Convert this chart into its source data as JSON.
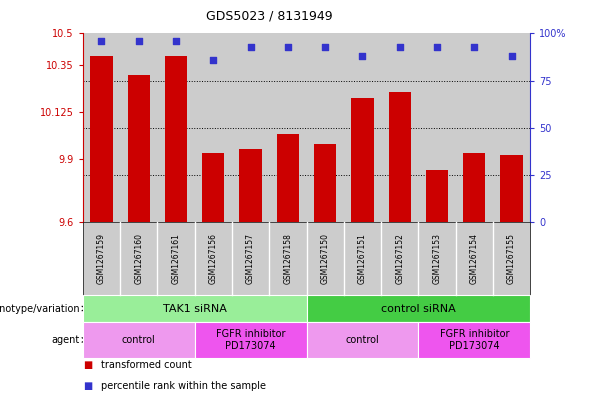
{
  "title": "GDS5023 / 8131949",
  "samples": [
    "GSM1267159",
    "GSM1267160",
    "GSM1267161",
    "GSM1267156",
    "GSM1267157",
    "GSM1267158",
    "GSM1267150",
    "GSM1267151",
    "GSM1267152",
    "GSM1267153",
    "GSM1267154",
    "GSM1267155"
  ],
  "red_values": [
    10.39,
    10.3,
    10.39,
    9.93,
    9.95,
    10.02,
    9.97,
    10.19,
    10.22,
    9.85,
    9.93,
    9.92
  ],
  "blue_values": [
    96,
    96,
    96,
    86,
    93,
    93,
    93,
    88,
    93,
    93,
    93,
    88
  ],
  "ymin": 9.6,
  "ymax": 10.5,
  "yticks": [
    9.6,
    9.9,
    10.125,
    10.35,
    10.5
  ],
  "ytick_labels": [
    "9.6",
    "9.9",
    "10.125",
    "10.35",
    "10.5"
  ],
  "right_yticks": [
    0,
    25,
    50,
    75,
    100
  ],
  "right_ytick_labels": [
    "0",
    "25",
    "50",
    "75",
    "100%"
  ],
  "hlines_pct": [
    25,
    50,
    75
  ],
  "red_color": "#cc0000",
  "blue_color": "#3333cc",
  "bar_width": 0.6,
  "groups": [
    {
      "label": "TAK1 siRNA",
      "start": 0,
      "end": 6,
      "color": "#99ee99"
    },
    {
      "label": "control siRNA",
      "start": 6,
      "end": 12,
      "color": "#44cc44"
    }
  ],
  "agents": [
    {
      "label": "control",
      "start": 0,
      "end": 3,
      "color": "#ee99ee"
    },
    {
      "label": "FGFR inhibitor\nPD173074",
      "start": 3,
      "end": 6,
      "color": "#ee55ee"
    },
    {
      "label": "control",
      "start": 6,
      "end": 9,
      "color": "#ee99ee"
    },
    {
      "label": "FGFR inhibitor\nPD173074",
      "start": 9,
      "end": 12,
      "color": "#ee55ee"
    }
  ],
  "legend_items": [
    {
      "label": "transformed count",
      "color": "#cc0000"
    },
    {
      "label": "percentile rank within the sample",
      "color": "#3333cc"
    }
  ],
  "row_labels": [
    "genotype/variation",
    "agent"
  ],
  "sample_bg": "#cccccc",
  "sample_border": "#aaaaaa"
}
